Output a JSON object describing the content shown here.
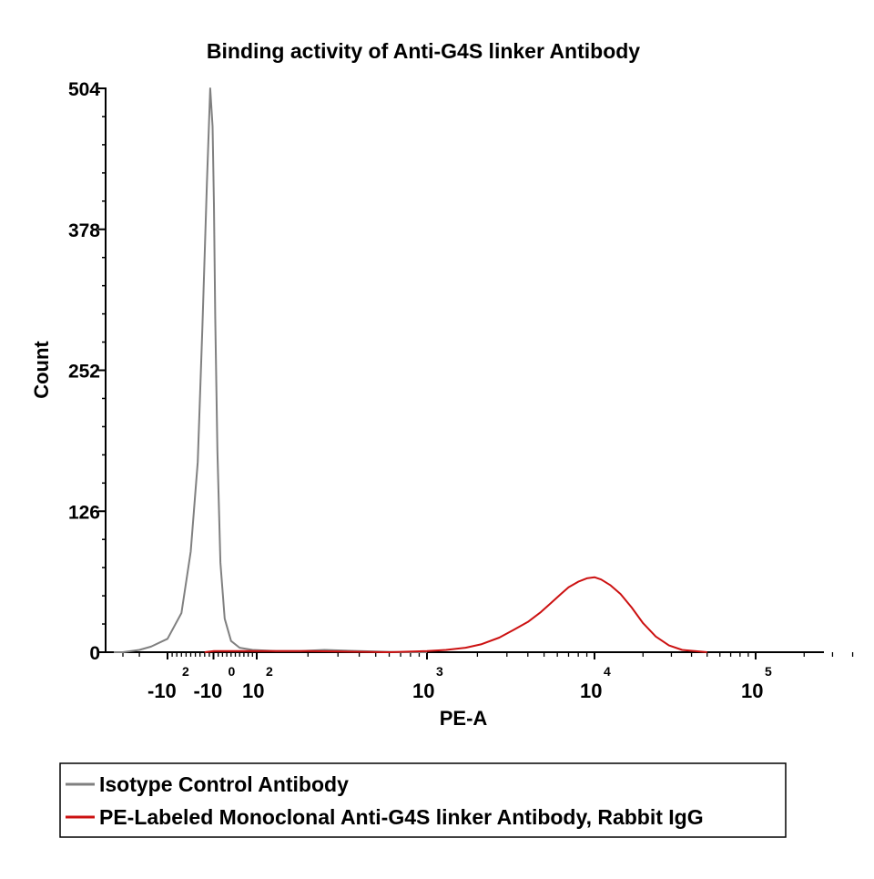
{
  "chart_data": {
    "type": "line",
    "title": "Binding activity of Anti-G4S linker Antibody",
    "xlabel": "PE-A",
    "ylabel": "Count",
    "y_ticks": [
      "0",
      "126",
      "252",
      "378",
      "504"
    ],
    "ylim": [
      0,
      504
    ],
    "x_scale": "biexponential",
    "x_ticks": [
      {
        "base": "-10",
        "exp": "2",
        "value": -100
      },
      {
        "base": "-10",
        "exp": "0",
        "value": -1
      },
      {
        "base": "10",
        "exp": "2",
        "value": 100
      },
      {
        "base": "10",
        "exp": "3",
        "value": 1000
      },
      {
        "base": "10",
        "exp": "4",
        "value": 10000
      },
      {
        "base": "10",
        "exp": "5",
        "value": 100000
      }
    ],
    "legend_placement": "bottom",
    "series": [
      {
        "name": "Isotype Control Antibody",
        "color": "#808080",
        "x": [
          -500,
          -300,
          -200,
          -150,
          -100,
          -70,
          -50,
          -35,
          -25,
          -15,
          -8,
          -3,
          0,
          3,
          8,
          15,
          25,
          40,
          60,
          90,
          130,
          180,
          250,
          400,
          700,
          1000
        ],
        "y": [
          0,
          0,
          2,
          5,
          12,
          35,
          90,
          170,
          290,
          420,
          504,
          470,
          400,
          300,
          180,
          80,
          30,
          10,
          4,
          2,
          1,
          1,
          2,
          1,
          0,
          0
        ]
      },
      {
        "name": "PE-Labeled Monoclonal Anti-G4S linker Antibody, Rabbit IgG",
        "color": "#cc1111",
        "x": [
          -20,
          0,
          20,
          100,
          200,
          600,
          1000,
          1300,
          1700,
          2100,
          2700,
          3300,
          4000,
          4800,
          5500,
          6300,
          7000,
          8000,
          9000,
          10000,
          11000,
          12500,
          14500,
          17000,
          20000,
          24000,
          29000,
          35000,
          42000,
          50000
        ],
        "y": [
          0,
          1,
          1,
          1,
          1,
          0,
          1,
          2,
          4,
          7,
          13,
          20,
          27,
          36,
          44,
          52,
          58,
          63,
          66,
          67,
          65,
          60,
          52,
          40,
          26,
          14,
          6,
          2,
          1,
          0
        ]
      }
    ]
  }
}
